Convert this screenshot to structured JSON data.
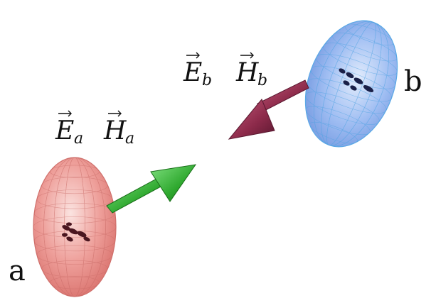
{
  "labels": {
    "particle_a": "a",
    "particle_b": "b",
    "field_a_E": "E",
    "field_a_E_sub": "a",
    "field_a_H": "H",
    "field_a_H_sub": "a",
    "field_b_E": "E",
    "field_b_E_sub": "b",
    "field_b_H": "H",
    "field_b_H_sub": "b"
  },
  "colors": {
    "ellipsoid_a_fill": "#e8908c",
    "ellipsoid_a_mesh": "#c86a66",
    "ellipsoid_b_fill": "#8fb0ec",
    "ellipsoid_b_mesh": "#5a9fe0",
    "arrow_a": "#2ea82e",
    "arrow_b": "#8c2a4a",
    "dots_a": "#4a1620",
    "dots_b": "#1a2048"
  }
}
